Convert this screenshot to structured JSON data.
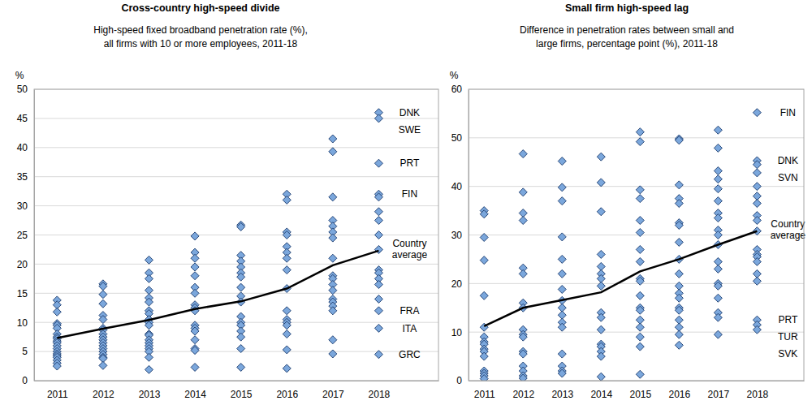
{
  "chart_data": [
    {
      "type": "scatter",
      "title": "Cross-country high-speed divide",
      "subtitle": [
        "High-speed fixed broadband penetration rate (%),",
        "all firms with 10 or more employees, 2011-18"
      ],
      "y_label": "%",
      "xlim": [
        2010.5,
        2019.3
      ],
      "xticks": [
        2011,
        2012,
        2013,
        2014,
        2015,
        2016,
        2017,
        2018
      ],
      "ylim": [
        0,
        50
      ],
      "yticks": [
        0,
        5,
        10,
        15,
        20,
        25,
        30,
        35,
        40,
        45,
        50
      ],
      "grid": true,
      "series": [
        {
          "type": "scatter",
          "marker": "diamond",
          "color": "#7ba7dc",
          "x": [
            2011,
            2011,
            2011,
            2011,
            2011,
            2011,
            2011,
            2011,
            2011,
            2011,
            2011,
            2011,
            2011,
            2011,
            2011,
            2011,
            2011,
            2011,
            2011,
            2011,
            2012,
            2012,
            2012,
            2012,
            2012,
            2012,
            2012,
            2012,
            2012,
            2012,
            2012,
            2012,
            2012,
            2012,
            2012,
            2012,
            2012,
            2012,
            2012,
            2013,
            2013,
            2013,
            2013,
            2013,
            2013,
            2013,
            2013,
            2013,
            2013,
            2013,
            2013,
            2013,
            2013,
            2013,
            2013,
            2013,
            2013,
            2013,
            2013,
            2014,
            2014,
            2014,
            2014,
            2014,
            2014,
            2014,
            2014,
            2014,
            2014,
            2014,
            2014,
            2014,
            2014,
            2014,
            2014,
            2014,
            2015,
            2015,
            2015,
            2015,
            2015,
            2015,
            2015,
            2015,
            2015,
            2015,
            2015,
            2015,
            2015,
            2015,
            2015,
            2015,
            2015,
            2016,
            2016,
            2016,
            2016,
            2016,
            2016,
            2016,
            2016,
            2016,
            2016,
            2016,
            2016,
            2016,
            2016,
            2016,
            2016,
            2017,
            2017,
            2017,
            2017,
            2017,
            2017,
            2017,
            2017,
            2017,
            2017,
            2017,
            2017,
            2017,
            2017,
            2017,
            2017,
            2017,
            2017,
            2018,
            2018,
            2018,
            2018,
            2018,
            2018,
            2018,
            2018,
            2018,
            2018,
            2018,
            2018,
            2018,
            2018,
            2018,
            2018,
            2018
          ],
          "values": [
            13.8,
            13.0,
            11.8,
            9.8,
            9.5,
            9.0,
            8.0,
            7.5,
            7.2,
            6.8,
            6.5,
            6.0,
            5.5,
            5.0,
            4.6,
            4.3,
            4.0,
            3.5,
            3.0,
            2.5,
            16.6,
            16.2,
            14.8,
            13.2,
            11.2,
            10.5,
            9.0,
            8.7,
            8.0,
            7.5,
            7.0,
            6.5,
            6.0,
            5.5,
            5.0,
            4.5,
            4.0,
            3.8,
            2.6,
            20.7,
            18.5,
            17.5,
            15.5,
            14.2,
            13.5,
            12.0,
            11.5,
            10.5,
            10.0,
            9.5,
            8.0,
            7.8,
            7.0,
            6.5,
            6.0,
            5.5,
            5.0,
            4.0,
            1.9,
            24.8,
            22.0,
            21.0,
            19.5,
            18.0,
            16.0,
            15.0,
            13.0,
            12.5,
            12.0,
            9.5,
            9.0,
            8.5,
            7.0,
            5.5,
            5.2,
            2.3,
            26.7,
            26.4,
            21.5,
            20.5,
            19.5,
            18.5,
            17.8,
            16.0,
            14.5,
            13.5,
            11.0,
            10.0,
            9.5,
            8.5,
            7.5,
            5.5,
            2.3,
            32.0,
            31.0,
            25.5,
            25.0,
            23.0,
            22.0,
            21.0,
            19.0,
            15.8,
            12.0,
            10.5,
            10.0,
            9.5,
            8.0,
            5.3,
            2.1,
            41.5,
            39.3,
            31.5,
            27.5,
            26.5,
            25.5,
            24.5,
            21.0,
            18.0,
            17.5,
            16.5,
            15.5,
            14.0,
            13.5,
            12.8,
            12.0,
            7.0,
            4.6,
            46.0,
            45.0,
            37.3,
            32.0,
            31.5,
            29.0,
            27.5,
            25.0,
            22.5,
            19.0,
            18.5,
            17.5,
            16.5,
            14.0,
            12.0,
            9.0,
            4.5
          ]
        },
        {
          "name": "Country average",
          "type": "line",
          "color": "#000000",
          "x": [
            2011,
            2012,
            2013,
            2014,
            2015,
            2016,
            2017,
            2018
          ],
          "values": [
            7.3,
            8.9,
            10.4,
            12.3,
            13.6,
            15.8,
            19.8,
            22.3
          ]
        }
      ],
      "annotations": [
        {
          "text": "DNK",
          "x": 2018,
          "y": 46.0
        },
        {
          "text": "SWE",
          "x": 2018,
          "y": 45.0
        },
        {
          "text": "PRT",
          "x": 2018,
          "y": 37.3
        },
        {
          "text": "FIN",
          "x": 2018,
          "y": 32.0
        },
        {
          "text": "FRA",
          "x": 2018,
          "y": 12.0
        },
        {
          "text": "ITA",
          "x": 2018,
          "y": 9.0
        },
        {
          "text": "GRC",
          "x": 2018,
          "y": 4.5
        }
      ]
    },
    {
      "type": "scatter",
      "title": "Small firm high-speed lag",
      "subtitle": [
        "Difference in penetration rates between small and",
        "large firms, percentage point (%), 2011-18"
      ],
      "y_label": "%",
      "xlim": [
        2010.6,
        2019.2
      ],
      "xticks": [
        2011,
        2012,
        2013,
        2014,
        2015,
        2016,
        2017,
        2018
      ],
      "ylim": [
        0,
        60
      ],
      "yticks": [
        0,
        10,
        20,
        30,
        40,
        50,
        60
      ],
      "grid": true,
      "series": [
        {
          "type": "scatter",
          "marker": "diamond",
          "color": "#7ba7dc",
          "x": [
            2011,
            2011,
            2011,
            2011,
            2011,
            2011,
            2011,
            2011,
            2011,
            2011,
            2011,
            2011,
            2011,
            2011,
            2011,
            2011,
            2012,
            2012,
            2012,
            2012,
            2012,
            2012,
            2012,
            2012,
            2012,
            2012,
            2012,
            2012,
            2012,
            2012,
            2012,
            2012,
            2012,
            2013,
            2013,
            2013,
            2013,
            2013,
            2013,
            2013,
            2013,
            2013,
            2013,
            2013,
            2013,
            2013,
            2013,
            2013,
            2013,
            2014,
            2014,
            2014,
            2014,
            2014,
            2014,
            2014,
            2014,
            2014,
            2014,
            2014,
            2014,
            2014,
            2014,
            2014,
            2014,
            2015,
            2015,
            2015,
            2015,
            2015,
            2015,
            2015,
            2015,
            2015,
            2015,
            2015,
            2015,
            2015,
            2015,
            2015,
            2015,
            2015,
            2015,
            2016,
            2016,
            2016,
            2016,
            2016,
            2016,
            2016,
            2016,
            2016,
            2016,
            2016,
            2016,
            2016,
            2016,
            2016,
            2016,
            2016,
            2016,
            2016,
            2017,
            2017,
            2017,
            2017,
            2017,
            2017,
            2017,
            2017,
            2017,
            2017,
            2017,
            2017,
            2017,
            2017,
            2017,
            2017,
            2017,
            2017,
            2017,
            2018,
            2018,
            2018,
            2018,
            2018,
            2018,
            2018,
            2018,
            2018,
            2018,
            2018,
            2018,
            2018,
            2018,
            2018,
            2018,
            2018,
            2018,
            2018
          ],
          "values": [
            35.0,
            34.3,
            29.5,
            24.8,
            17.5,
            11.0,
            9.0,
            8.0,
            7.5,
            6.5,
            6.0,
            5.0,
            2.0,
            1.5,
            1.0,
            0.4,
            46.7,
            38.8,
            34.5,
            33.0,
            23.2,
            22.0,
            16.0,
            15.0,
            10.5,
            9.5,
            9.0,
            6.0,
            5.5,
            3.0,
            2.0,
            1.0,
            0.5,
            45.2,
            39.8,
            37.0,
            29.6,
            25.0,
            22.0,
            18.8,
            16.5,
            15.0,
            13.5,
            12.0,
            11.0,
            5.5,
            3.0,
            2.0,
            1.5,
            46.1,
            40.8,
            34.8,
            26.0,
            23.5,
            22.0,
            21.0,
            19.5,
            14.0,
            13.0,
            10.5,
            7.5,
            7.0,
            6.0,
            5.0,
            0.8,
            51.2,
            49.2,
            39.3,
            37.5,
            33.0,
            30.5,
            27.0,
            24.5,
            21.0,
            20.5,
            17.5,
            15.0,
            14.5,
            12.5,
            11.0,
            9.0,
            7.0,
            1.3,
            49.8,
            49.5,
            40.3,
            37.5,
            36.5,
            32.5,
            32.0,
            28.5,
            25.0,
            22.0,
            19.5,
            18.0,
            17.0,
            15.0,
            14.5,
            12.5,
            11.0,
            9.5,
            7.3,
            51.6,
            47.9,
            43.2,
            41.5,
            39.5,
            37.0,
            34.5,
            33.5,
            31.0,
            30.0,
            28.0,
            24.5,
            23.0,
            20.0,
            19.5,
            17.0,
            14.0,
            13.0,
            9.5,
            55.2,
            45.3,
            44.5,
            42.8,
            40.0,
            38.0,
            36.5,
            34.0,
            33.0,
            30.8,
            27.0,
            26.0,
            25.5,
            24.5,
            22.0,
            20.5,
            12.5,
            11.5,
            10.5
          ]
        },
        {
          "name": "Country average",
          "type": "line",
          "color": "#000000",
          "x": [
            2011,
            2012,
            2013,
            2014,
            2015,
            2016,
            2017,
            2018
          ],
          "values": [
            11.2,
            15.0,
            16.6,
            18.2,
            22.5,
            25.0,
            28.0,
            30.8
          ]
        }
      ],
      "annotations": [
        {
          "text": "FIN",
          "x": 2018,
          "y": 55.2
        },
        {
          "text": "DNK",
          "x": 2018,
          "y": 45.3
        },
        {
          "text": "SVN",
          "x": 2018,
          "y": 44.5
        },
        {
          "text": "PRT",
          "x": 2018,
          "y": 12.5
        },
        {
          "text": "TUR",
          "x": 2018,
          "y": 11.5
        },
        {
          "text": "SVK",
          "x": 2018,
          "y": 10.5
        }
      ]
    }
  ]
}
